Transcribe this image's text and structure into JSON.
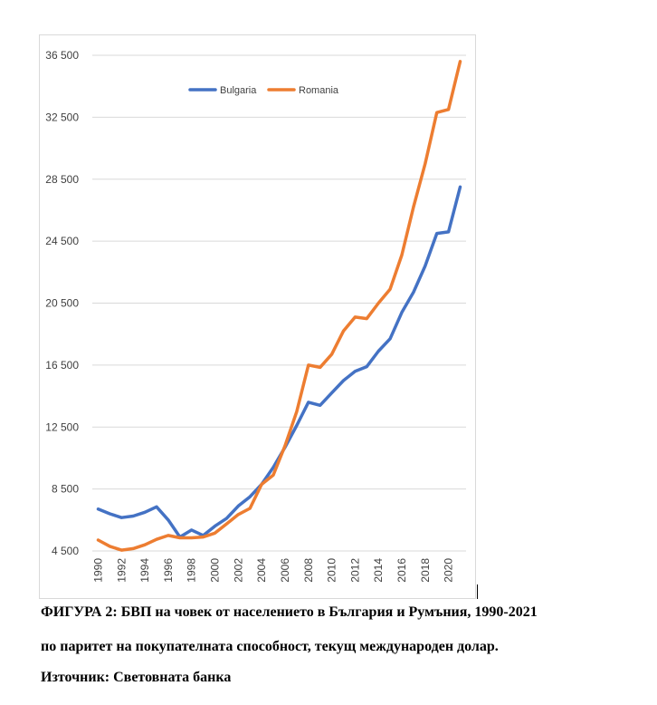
{
  "chart_data": {
    "type": "line",
    "title": "",
    "xlabel": "",
    "ylabel": "",
    "ylim": [
      4500,
      36500
    ],
    "y_ticks": [
      "4 500",
      "8 500",
      "12 500",
      "16 500",
      "20 500",
      "24 500",
      "28 500",
      "32 500",
      "36 500"
    ],
    "y_tick_values": [
      4500,
      8500,
      12500,
      16500,
      20500,
      24500,
      28500,
      32500,
      36500
    ],
    "x_ticks": [
      "1990",
      "1992",
      "1994",
      "1996",
      "1998",
      "2000",
      "2002",
      "2004",
      "2006",
      "2008",
      "2010",
      "2012",
      "2014",
      "2016",
      "2018",
      "2020"
    ],
    "x": [
      1990,
      1991,
      1992,
      1993,
      1994,
      1995,
      1996,
      1997,
      1998,
      1999,
      2000,
      2001,
      2002,
      2003,
      2004,
      2005,
      2006,
      2007,
      2008,
      2009,
      2010,
      2011,
      2012,
      2013,
      2014,
      2015,
      2016,
      2017,
      2018,
      2019,
      2020,
      2021
    ],
    "grid": true,
    "legend_position": "top",
    "series": [
      {
        "name": "Bulgaria",
        "color": "#4472c4",
        "values": [
          7200,
          6900,
          6650,
          6750,
          7000,
          7350,
          6500,
          5400,
          5850,
          5500,
          6100,
          6600,
          7400,
          8000,
          8800,
          9900,
          11200,
          12600,
          14100,
          13900,
          14700,
          15500,
          16100,
          16400,
          17400,
          18200,
          19900,
          21200,
          22900,
          25000,
          25100,
          28000
        ]
      },
      {
        "name": "Romania",
        "color": "#ed7d31",
        "values": [
          5200,
          4800,
          4550,
          4650,
          4900,
          5250,
          5500,
          5350,
          5350,
          5400,
          5650,
          6250,
          6850,
          7250,
          8800,
          9400,
          11300,
          13500,
          16500,
          16350,
          17200,
          18700,
          19600,
          19500,
          20500,
          21400,
          23600,
          26700,
          29500,
          32800,
          33000,
          36100
        ]
      }
    ]
  },
  "caption": {
    "line1": "ФИГУРА 2: БВП на човек от населението в България и Румъния, 1990-2021",
    "line2": "по паритет на покупателната способност, текущ международен долар.",
    "line3": "Източник: Световната банка"
  }
}
